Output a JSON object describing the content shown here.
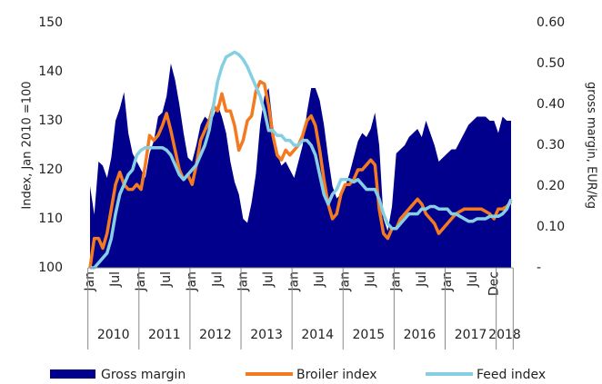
{
  "chart_data": {
    "type": "area_line",
    "y_label": "Index, Jan 2010 =100",
    "y2_label": "gross margin, EUR/kg",
    "categories": [
      "Jan",
      null,
      null,
      null,
      null,
      null,
      "Jul",
      null,
      null,
      null,
      null,
      null,
      "Jan",
      null,
      null,
      null,
      null,
      null,
      "Jul",
      null,
      null,
      null,
      null,
      null,
      "Jan",
      null,
      null,
      null,
      null,
      null,
      "Jul",
      null,
      null,
      null,
      null,
      null,
      "Jan",
      null,
      null,
      null,
      null,
      null,
      "Jul",
      null,
      null,
      null,
      null,
      null,
      "Jan",
      null,
      null,
      null,
      null,
      null,
      "Jul",
      null,
      null,
      null,
      null,
      null,
      "Jan",
      null,
      null,
      null,
      null,
      null,
      "Jul",
      null,
      null,
      null,
      null,
      null,
      "Jan",
      null,
      null,
      null,
      null,
      null,
      "Jul",
      null,
      null,
      null,
      null,
      null,
      "Jan",
      null,
      null,
      null,
      null,
      null,
      "Jul",
      null,
      null,
      null,
      null,
      "Dec",
      null,
      null,
      null,
      null
    ],
    "years": [
      "2010",
      "2011",
      "2012",
      "2013",
      "2014",
      "2015",
      "2016",
      "2017",
      "2018"
    ],
    "ylim": [
      100,
      150
    ],
    "yticks": [
      100,
      110,
      120,
      130,
      140,
      150
    ],
    "y2lim": [
      0,
      0.6
    ],
    "y2ticks": [
      {
        "value": 0,
        "label": "-"
      },
      {
        "value": 0.1,
        "label": "0.10"
      },
      {
        "value": 0.2,
        "label": "0.20"
      },
      {
        "value": 0.3,
        "label": "0.30"
      },
      {
        "value": 0.4,
        "label": "0.40"
      },
      {
        "value": 0.5,
        "label": "0.50"
      },
      {
        "value": 0.6,
        "label": "0.60"
      }
    ],
    "series": [
      {
        "name": "Gross margin",
        "kind": "area",
        "axis": "y2",
        "color": "#00008c",
        "values": [
          0.2,
          0.13,
          0.26,
          0.25,
          0.22,
          0.27,
          0.36,
          0.39,
          0.43,
          0.33,
          0.28,
          0.26,
          0.24,
          0.22,
          0.28,
          0.31,
          0.37,
          0.38,
          0.42,
          0.5,
          0.46,
          0.4,
          0.33,
          0.27,
          0.26,
          0.3,
          0.35,
          0.37,
          0.36,
          0.37,
          0.4,
          0.37,
          0.33,
          0.26,
          0.21,
          0.18,
          0.12,
          0.11,
          0.16,
          0.23,
          0.35,
          0.42,
          0.44,
          0.35,
          0.28,
          0.25,
          0.26,
          0.24,
          0.22,
          0.26,
          0.3,
          0.38,
          0.44,
          0.44,
          0.41,
          0.35,
          0.27,
          0.2,
          0.17,
          0.18,
          0.2,
          0.23,
          0.27,
          0.31,
          0.33,
          0.32,
          0.34,
          0.38,
          0.3,
          0.12,
          0.09,
          0.15,
          0.28,
          0.29,
          0.3,
          0.32,
          0.33,
          0.34,
          0.32,
          0.36,
          0.33,
          0.3,
          0.26,
          0.27,
          0.28,
          0.29,
          0.29,
          0.31,
          0.33,
          0.35,
          0.36,
          0.37,
          0.37,
          0.37,
          0.36,
          0.36,
          0.33,
          0.37,
          0.36,
          0.36
        ]
      },
      {
        "name": "Broiler index",
        "kind": "line",
        "color": "#f47a20",
        "values": [
          100,
          106,
          106,
          104,
          107,
          112,
          117,
          119.5,
          117,
          116,
          116,
          117,
          116,
          121,
          127,
          126,
          127,
          129,
          131.5,
          128,
          124,
          120,
          118,
          119,
          117,
          121,
          126,
          128,
          130,
          133,
          132,
          135.5,
          132,
          132,
          129,
          124,
          126,
          130,
          131,
          136,
          138,
          137.5,
          133,
          127,
          123,
          122,
          124,
          123,
          124,
          125,
          127,
          130,
          131,
          129,
          124,
          118,
          113,
          110,
          111,
          115,
          117,
          117,
          118,
          120,
          120,
          121,
          122,
          121,
          112,
          107,
          106,
          108,
          108,
          110,
          111,
          112,
          113,
          114,
          113,
          111,
          110,
          109,
          107,
          108,
          109,
          110,
          111,
          111.5,
          112,
          112,
          112,
          112,
          112,
          111.5,
          111,
          110,
          112,
          112,
          112.5,
          113.5
        ]
      },
      {
        "name": "Feed index",
        "kind": "line",
        "color": "#86cfe3",
        "values": [
          100,
          100,
          101,
          102,
          103,
          106,
          111,
          115,
          117,
          119,
          120,
          123,
          124,
          124.5,
          124.5,
          124.5,
          124.5,
          124.5,
          124,
          123,
          121,
          119,
          118,
          119,
          120,
          121,
          123,
          125,
          128,
          133,
          138,
          141,
          143,
          143.5,
          144,
          143.5,
          142.5,
          141,
          139,
          137,
          135,
          132,
          128,
          128,
          127,
          127,
          126,
          126,
          125,
          125,
          126,
          126,
          125,
          123,
          119,
          115,
          113,
          115,
          116,
          118,
          118,
          118,
          117.5,
          118,
          117,
          116,
          116,
          116,
          114,
          111,
          109,
          108,
          108,
          109,
          110,
          111,
          111,
          111,
          112,
          112,
          112.5,
          112.5,
          112,
          112,
          112,
          111,
          111,
          110.5,
          110,
          109.5,
          109.5,
          110,
          110,
          110,
          110.5,
          110.5,
          110.5,
          111,
          112,
          114
        ]
      }
    ]
  }
}
